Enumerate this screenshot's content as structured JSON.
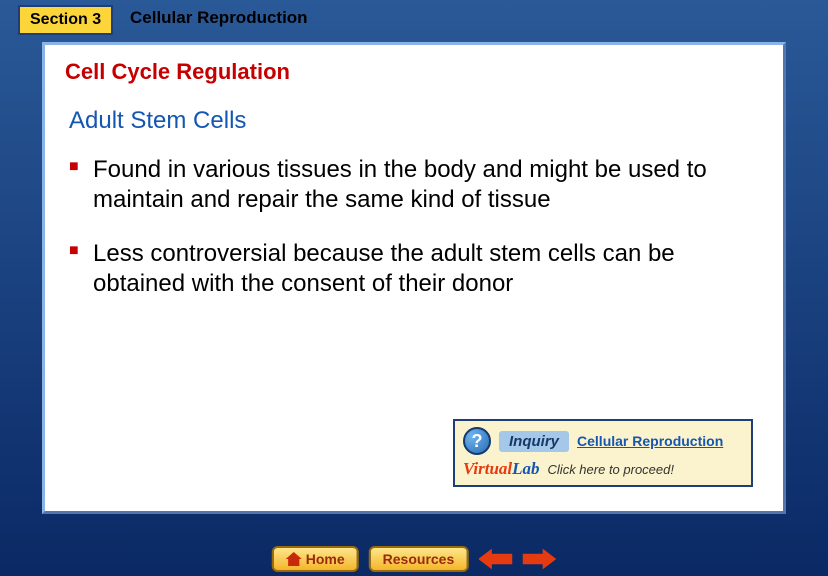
{
  "header": {
    "section_label": "Section 3",
    "chapter_title": "Cellular Reproduction"
  },
  "content": {
    "section_title": "Cell Cycle Regulation",
    "subsection_title": "Adult Stem Cells",
    "bullets": [
      "Found in various tissues in the body and might be used to maintain and repair the same kind of tissue",
      "Less controversial because the adult stem cells can be obtained with the consent of their donor"
    ]
  },
  "inquiry": {
    "badge": "?",
    "label": "Inquiry",
    "link_text": "Cellular Reproduction",
    "vlab_prefix": "Virtual",
    "vlab_suffix": "Lab",
    "proceed_text": "Click here to proceed!"
  },
  "nav": {
    "home_label": "Home",
    "resources_label": "Resources"
  },
  "colors": {
    "accent_red": "#c60000",
    "accent_blue": "#1456b0",
    "tab_yellow": "#fcd53a",
    "bg_gradient_top": "#2a5998",
    "bg_gradient_bottom": "#0a2965"
  }
}
